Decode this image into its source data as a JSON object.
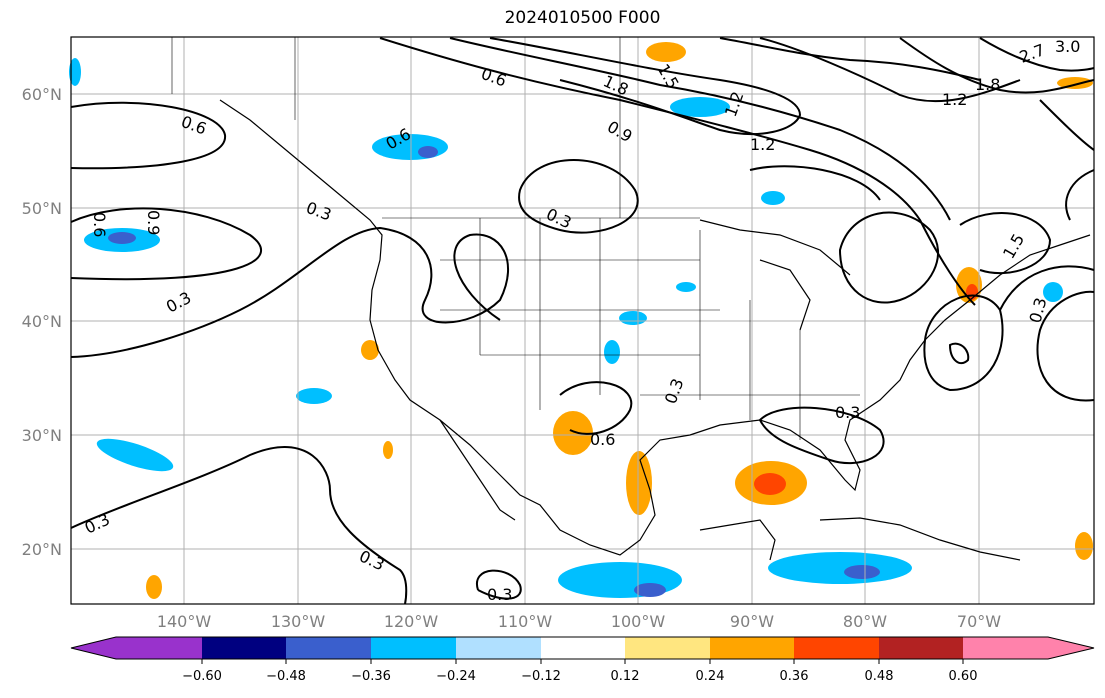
{
  "title": "2024010500 F000",
  "map": {
    "lat_labels": [
      "60°N",
      "50°N",
      "40°N",
      "30°N",
      "20°N"
    ],
    "lon_labels": [
      "140°W",
      "130°W",
      "120°W",
      "110°W",
      "100°W",
      "90°W",
      "80°W",
      "70°W"
    ]
  },
  "contour_labels": [
    "0.6",
    "0.3",
    "0.6",
    "0.9",
    "1.8",
    "1.5",
    "1.2",
    "0.6",
    "0.9",
    "1.2",
    "2.7",
    "3.0",
    "1.8",
    "1.2",
    "1.5",
    "0.3",
    "0.6",
    "0.3",
    "0.3",
    "0.3",
    "0.6",
    "0.3",
    "0.3",
    "0.3",
    "0.3"
  ],
  "colorbar": {
    "ticks": [
      "−0.60",
      "−0.48",
      "−0.36",
      "−0.24",
      "−0.12",
      "0.12",
      "0.24",
      "0.36",
      "0.48",
      "0.60"
    ],
    "colors": {
      "under": "#9932cc",
      "c1": "#000080",
      "c2": "#3a5fcd",
      "c3": "#00bfff",
      "c4": "#b0e0ff",
      "c5": "#ffffff",
      "c6": "#ffe680",
      "c7": "#ffa500",
      "c8": "#ff4500",
      "c9": "#b22222",
      "over": "#ff82ab"
    }
  }
}
